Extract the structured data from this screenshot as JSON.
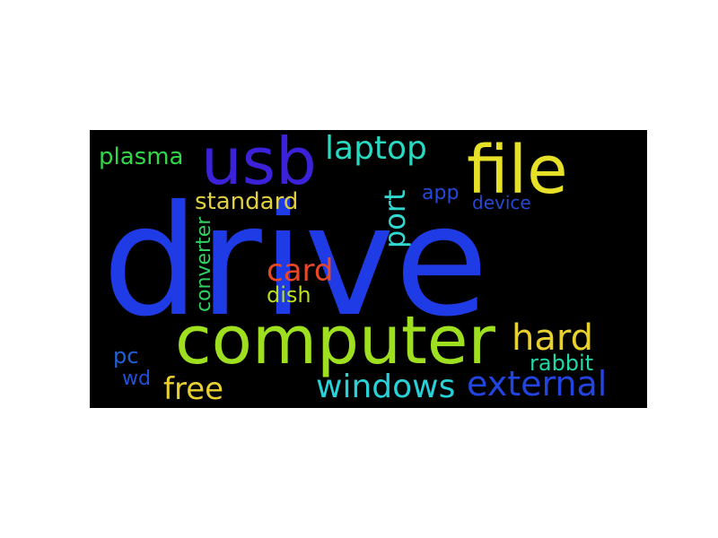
{
  "word_cloud": {
    "background": "#000000",
    "words": [
      {
        "text": "drive",
        "color": "#1f3be6"
      },
      {
        "text": "computer",
        "color": "#9ee020"
      },
      {
        "text": "file",
        "color": "#e6e028"
      },
      {
        "text": "usb",
        "color": "#3b22d8"
      },
      {
        "text": "laptop",
        "color": "#28d8c0"
      },
      {
        "text": "external",
        "color": "#2244e0"
      },
      {
        "text": "windows",
        "color": "#28d0d8"
      },
      {
        "text": "hard",
        "color": "#e8d030"
      },
      {
        "text": "card",
        "color": "#e84828"
      },
      {
        "text": "free",
        "color": "#e8d030"
      },
      {
        "text": "port",
        "color": "#30d8d0"
      },
      {
        "text": "standard",
        "color": "#e0d040"
      },
      {
        "text": "plasma",
        "color": "#30d848"
      },
      {
        "text": "rabbit",
        "color": "#20d8a8"
      },
      {
        "text": "dish",
        "color": "#b8e020"
      },
      {
        "text": "converter",
        "color": "#30d060"
      },
      {
        "text": "app",
        "color": "#2848d8"
      },
      {
        "text": "device",
        "color": "#2848d0"
      },
      {
        "text": "pc",
        "color": "#2060d8"
      },
      {
        "text": "wd",
        "color": "#2050d8"
      }
    ]
  }
}
